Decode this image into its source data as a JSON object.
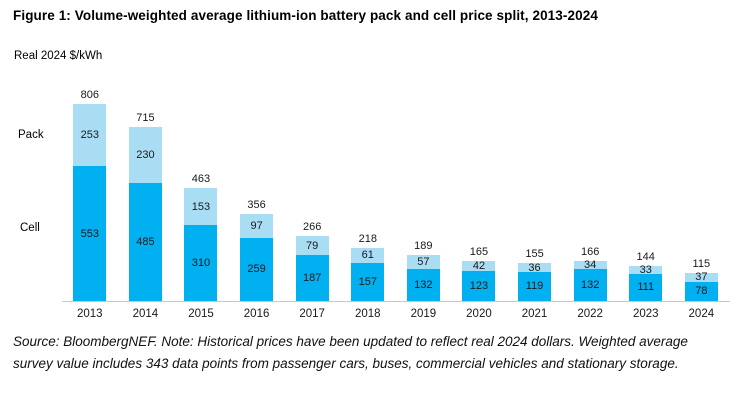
{
  "title": "Figure 1: Volume-weighted average lithium-ion battery pack and cell price split, 2013-2024",
  "axis_label": "Real 2024 $/kWh",
  "row_labels": {
    "pack": "Pack",
    "cell": "Cell"
  },
  "source_note": "Source: BloombergNEF. Note: Historical prices have been updated to reflect real 2024 dollars. Weighted average survey value includes 343 data points from passenger cars, buses, commercial vehicles and stationary storage.",
  "colors": {
    "cell": "#00b0f0",
    "pack": "#a9ddf3",
    "axis_line": "#c9c9c9"
  },
  "chart_data": {
    "type": "bar",
    "stacked": true,
    "title": "Figure 1: Volume-weighted average lithium-ion battery pack and cell price split, 2013-2024",
    "ylabel": "Real 2024 $/kWh",
    "xlabel": "",
    "ylim": [
      0,
      850
    ],
    "grid": false,
    "legend_position": "left-row-labels",
    "categories": [
      "2013",
      "2014",
      "2015",
      "2016",
      "2017",
      "2018",
      "2019",
      "2020",
      "2021",
      "2022",
      "2023",
      "2024"
    ],
    "series": [
      {
        "name": "Pack",
        "color": "#a9ddf3",
        "values": [
          253,
          230,
          153,
          97,
          79,
          61,
          57,
          42,
          36,
          34,
          33,
          37
        ]
      },
      {
        "name": "Cell",
        "color": "#00b0f0",
        "values": [
          553,
          485,
          310,
          259,
          187,
          157,
          132,
          123,
          119,
          132,
          111,
          78
        ]
      }
    ],
    "totals": [
      806,
      715,
      463,
      356,
      266,
      218,
      189,
      165,
      155,
      166,
      144,
      115
    ]
  }
}
